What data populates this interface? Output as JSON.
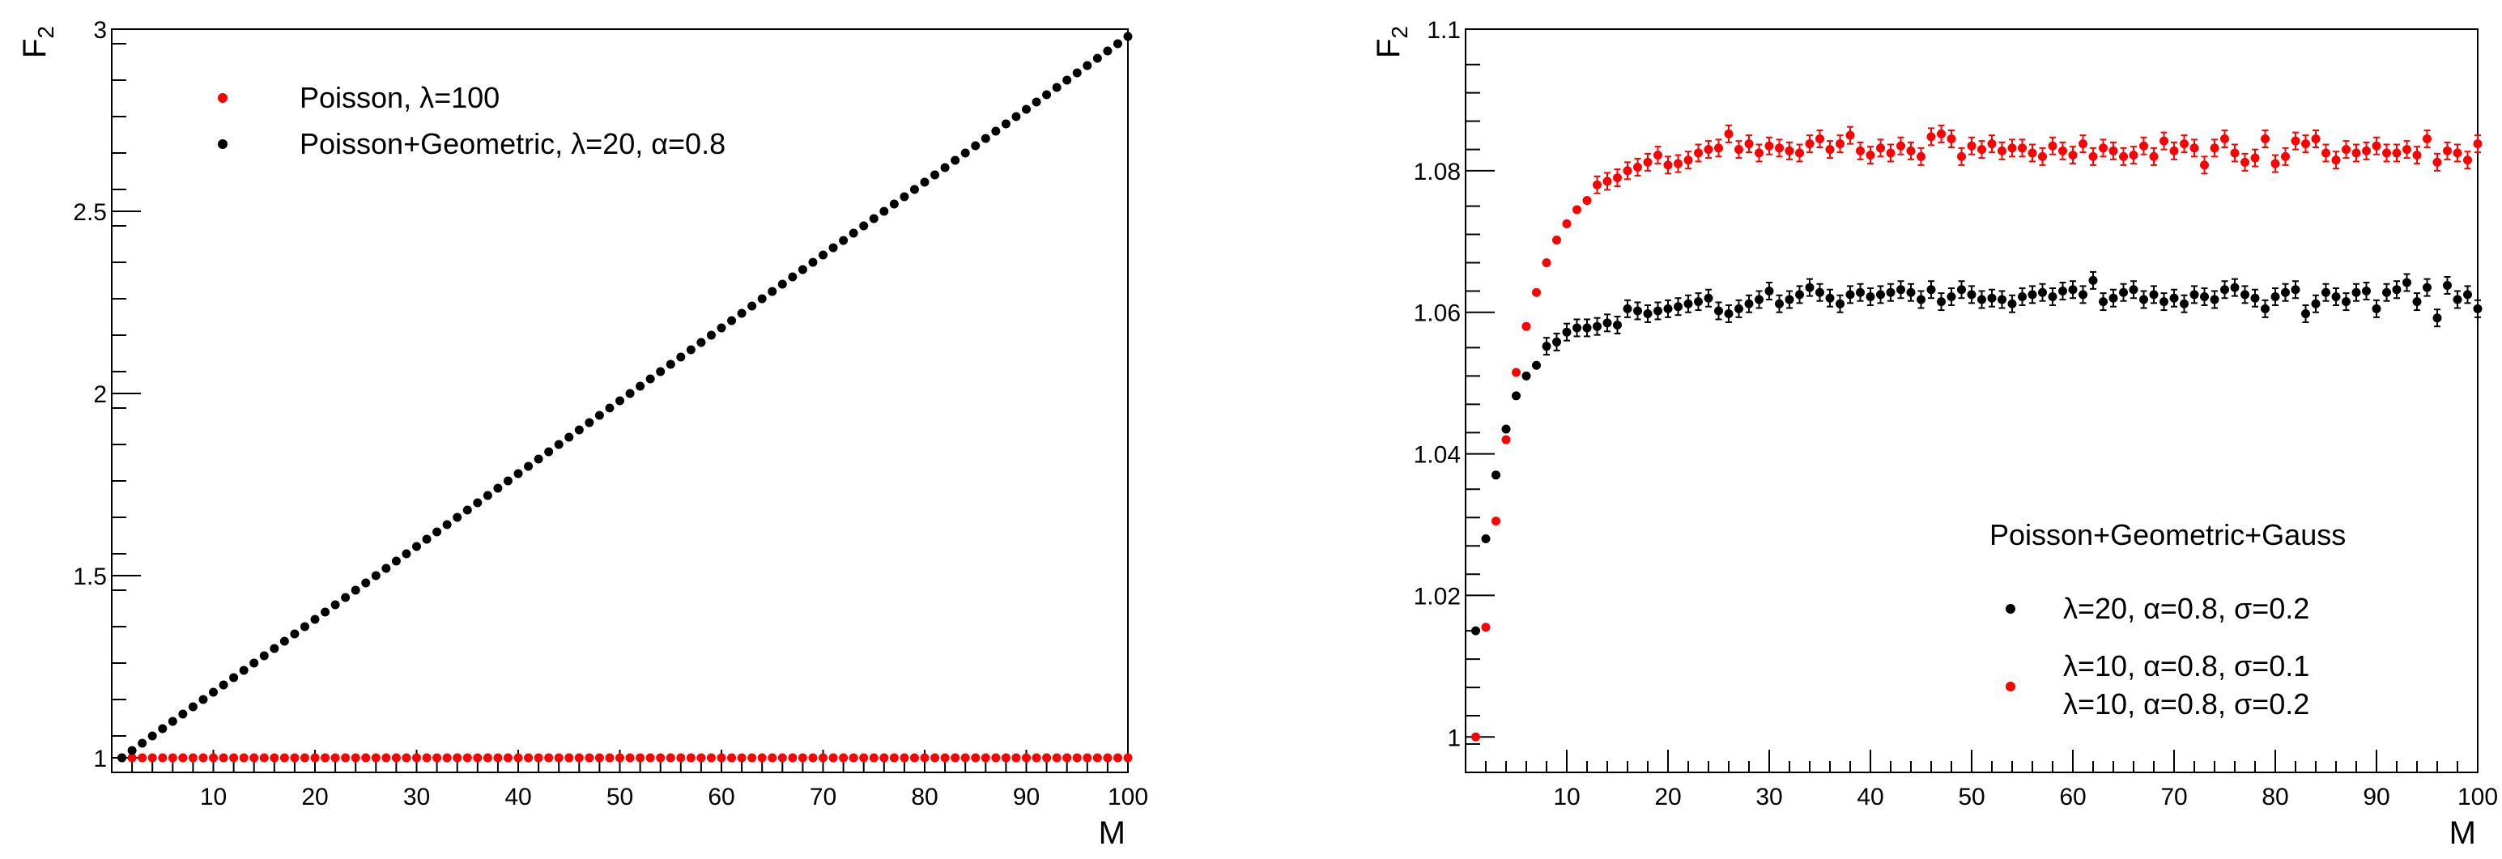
{
  "chart_data": [
    {
      "id": "left",
      "type": "scatter",
      "xlabel": "M",
      "ylabel": "F",
      "ylabel_sub": "2",
      "xlim": [
        0,
        100
      ],
      "ylim": [
        0.96,
        3.0
      ],
      "x_ticks": [
        10,
        20,
        30,
        40,
        50,
        60,
        70,
        80,
        90,
        100
      ],
      "y_ticks": [
        1,
        1.5,
        2,
        2.5,
        3
      ],
      "y_tick_labels": [
        "1",
        "1.5",
        "2",
        "2.5",
        "3"
      ],
      "legend": [
        {
          "label": "Poisson, λ=100",
          "color": "#ff0000"
        },
        {
          "label": "Poisson+Geometric, λ=20, α=0.8",
          "color": "#000000"
        }
      ],
      "series": [
        {
          "name": "Poisson, λ=100",
          "color": "#ff0000",
          "kind": "constant",
          "value": 1.0,
          "m_from": 1,
          "m_to": 100
        },
        {
          "name": "Poisson+Geometric, λ=20, α=0.8",
          "color": "#000000",
          "kind": "linear",
          "slope": 0.02,
          "intercept": 0.98,
          "m_from": 1,
          "m_to": 100
        }
      ]
    },
    {
      "id": "right",
      "type": "scatter",
      "xlabel": "M",
      "ylabel": "F",
      "ylabel_sub": "2",
      "xlim": [
        0,
        100
      ],
      "ylim": [
        0.995,
        1.1
      ],
      "x_ticks": [
        10,
        20,
        30,
        40,
        50,
        60,
        70,
        80,
        90,
        100
      ],
      "y_ticks": [
        1,
        1.02,
        1.04,
        1.06,
        1.08,
        1.1
      ],
      "y_tick_labels": [
        "1",
        "1.02",
        "1.04",
        "1.06",
        "1.08",
        "1.1"
      ],
      "legend_title": "Poisson+Geometric+Gauss",
      "legend": [
        {
          "label": "λ=20, α=0.8, σ=0.2",
          "color": "#000000"
        },
        {
          "label": "λ=10, α=0.8, σ=0.1",
          "color": "#ff0000"
        },
        {
          "label": "λ=10, α=0.8, σ=0.2",
          "color": ""
        }
      ],
      "series": [
        {
          "name": "λ=10, α=0.8, σ=0.1",
          "color": "#ff0000",
          "errors_from": 13,
          "error": 0.0012,
          "values": [
            1.0,
            1.0155,
            1.0305,
            1.042,
            1.0515,
            1.058,
            1.0628,
            1.067,
            1.0702,
            1.0725,
            1.0745,
            1.0758,
            1.078,
            1.0785,
            1.079,
            1.08,
            1.0805,
            1.0812,
            1.0822,
            1.0808,
            1.081,
            1.0815,
            1.0825,
            1.083,
            1.0832,
            1.0852,
            1.083,
            1.0838,
            1.0825,
            1.0835,
            1.0832,
            1.0828,
            1.0825,
            1.0838,
            1.0845,
            1.083,
            1.0838,
            1.085,
            1.0828,
            1.0822,
            1.0832,
            1.0825,
            1.0835,
            1.0828,
            1.082,
            1.0848,
            1.0852,
            1.0845,
            1.082,
            1.0835,
            1.083,
            1.0838,
            1.0828,
            1.0832,
            1.0832,
            1.0825,
            1.082,
            1.0835,
            1.0828,
            1.0822,
            1.0838,
            1.082,
            1.0832,
            1.0828,
            1.082,
            1.0822,
            1.0835,
            1.082,
            1.0842,
            1.0828,
            1.0838,
            1.0832,
            1.0808,
            1.0832,
            1.0845,
            1.0825,
            1.0812,
            1.0818,
            1.0845,
            1.081,
            1.082,
            1.0842,
            1.0838,
            1.0845,
            1.0825,
            1.0815,
            1.083,
            1.0825,
            1.0828,
            1.0835,
            1.0825,
            1.0825,
            1.083,
            1.0822,
            1.0845,
            1.0812,
            1.0828,
            1.0825,
            1.0815,
            1.0838
          ]
        },
        {
          "name": "λ=20, α=0.8, σ=0.2",
          "color": "#000000",
          "errors_from": 8,
          "error": 0.0012,
          "values": [
            1.015,
            1.028,
            1.037,
            1.0435,
            1.0482,
            1.051,
            1.0525,
            1.0552,
            1.0558,
            1.0572,
            1.0578,
            1.0578,
            1.058,
            1.0585,
            1.0582,
            1.0605,
            1.0602,
            1.0598,
            1.0602,
            1.0605,
            1.0608,
            1.0612,
            1.0615,
            1.062,
            1.0602,
            1.0598,
            1.0605,
            1.0612,
            1.0618,
            1.063,
            1.0612,
            1.0618,
            1.0625,
            1.0635,
            1.0628,
            1.062,
            1.0612,
            1.0625,
            1.0628,
            1.0622,
            1.0625,
            1.0628,
            1.0632,
            1.0628,
            1.0618,
            1.0632,
            1.0615,
            1.0622,
            1.0632,
            1.0625,
            1.0618,
            1.062,
            1.0618,
            1.0612,
            1.0622,
            1.0625,
            1.0628,
            1.0622,
            1.063,
            1.0632,
            1.0625,
            1.0645,
            1.0615,
            1.062,
            1.0628,
            1.0632,
            1.0618,
            1.0625,
            1.0615,
            1.062,
            1.0612,
            1.0625,
            1.0622,
            1.0618,
            1.0632,
            1.0635,
            1.0625,
            1.062,
            1.0605,
            1.0622,
            1.0628,
            1.0632,
            1.0598,
            1.0612,
            1.0628,
            1.0622,
            1.0615,
            1.0628,
            1.063,
            1.0605,
            1.0628,
            1.0632,
            1.0642,
            1.0615,
            1.0635,
            1.0592,
            1.0638,
            1.0618,
            1.0625,
            1.0605
          ]
        }
      ]
    }
  ]
}
